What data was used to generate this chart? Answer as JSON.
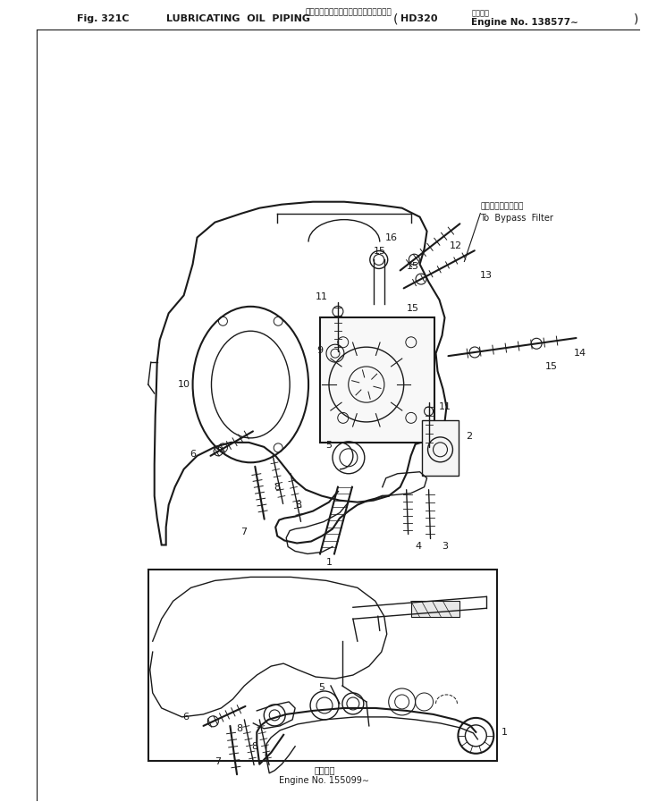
{
  "title_jp": "ルーブリケーティングオイルパイピング",
  "title_fig": "Fig. 321C",
  "title_main": "LUBRICATING  OIL  PIPING",
  "title_model": "HD320",
  "title_applicable_jp": "適用号機",
  "title_engine": "Engine No. 138577∼",
  "bottom_jp": "適用号機",
  "bottom_en": "Engine No. 155099∼",
  "bypass_jp": "バイパスフィルタへ",
  "bypass_en": "To  Bypass  Filter",
  "bg_color": "#ffffff",
  "lc": "#1a1a1a",
  "fig_width": 7.26,
  "fig_height": 8.97,
  "dpi": 100
}
